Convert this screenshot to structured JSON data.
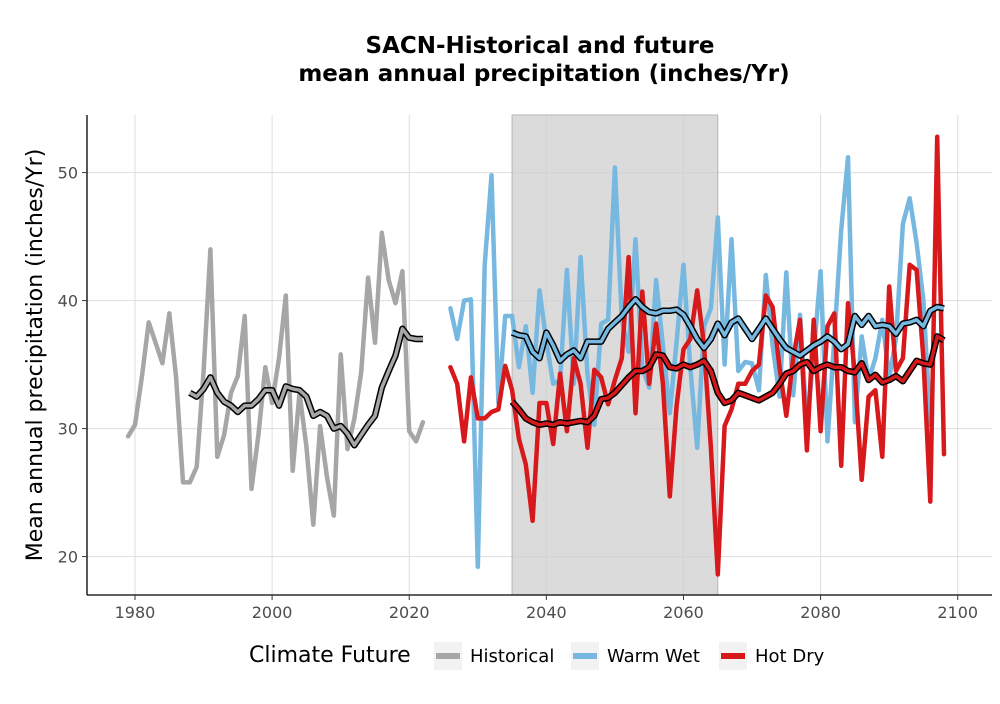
{
  "chart_data": {
    "type": "line",
    "title_line1": "SACN-Historical and future",
    "title_line2": "mean annual precipitation (inches/Yr)",
    "xlabel": "",
    "ylabel": "Mean annual precipitation (inches/Yr)",
    "xlim": [
      1973,
      2105
    ],
    "ylim": [
      17,
      54.5
    ],
    "x_ticks": [
      1980,
      2000,
      2020,
      2040,
      2060,
      2080,
      2100
    ],
    "y_ticks": [
      20,
      30,
      40,
      50
    ],
    "grid": true,
    "shaded_period": [
      2035,
      2065
    ],
    "legend": {
      "title": "Climate Future",
      "position": "bottom"
    },
    "series": [
      {
        "name": "Historical",
        "color": "#a6a6a6",
        "start_year": 1979,
        "values": [
          29.4,
          30.3,
          34.0,
          38.3,
          36.7,
          35.1,
          39.0,
          34.0,
          25.8,
          25.8,
          27.0,
          34.5,
          44.0,
          27.8,
          29.5,
          32.8,
          34.1,
          38.8,
          25.3,
          29.5,
          34.8,
          32.0,
          35.5,
          40.4,
          26.7,
          32.8,
          28.6,
          22.5,
          30.2,
          26.2,
          23.2,
          35.8,
          28.4,
          30.8,
          34.4,
          41.8,
          36.7,
          45.3,
          41.6,
          39.8,
          42.3,
          29.8,
          29.0,
          30.5
        ]
      },
      {
        "name": "Warm Wet",
        "color": "#77b8e1",
        "start_year": 2026,
        "values": [
          39.4,
          37.0,
          40.0,
          40.1,
          19.2,
          42.8,
          49.8,
          32.0,
          38.8,
          38.8,
          34.8,
          38.0,
          32.8,
          40.8,
          36.8,
          33.5,
          33.8,
          42.4,
          33.5,
          43.4,
          34.2,
          30.3,
          38.2,
          38.5,
          50.4,
          38.5,
          36.0,
          44.8,
          34.8,
          33.2,
          41.6,
          36.5,
          31.2,
          36.8,
          42.8,
          34.8,
          28.5,
          38.0,
          39.4,
          46.5,
          35.0,
          44.8,
          34.5,
          35.2,
          35.1,
          33.0,
          42.0,
          36.5,
          32.5,
          42.2,
          32.6,
          38.9,
          30.2,
          35.8,
          42.3,
          29.0,
          37.0,
          45.5,
          51.2,
          30.5,
          37.2,
          33.8,
          35.5,
          38.5,
          34.0,
          37.0,
          46.0,
          48.0,
          44.5,
          40.0,
          30.3
        ]
      },
      {
        "name": "Hot Dry",
        "color": "#d7191c",
        "start_year": 2026,
        "values": [
          34.8,
          33.5,
          29.0,
          34.0,
          30.8,
          30.8,
          31.3,
          31.5,
          34.9,
          33.0,
          29.2,
          27.2,
          22.8,
          32.0,
          32.0,
          28.8,
          34.3,
          29.8,
          35.5,
          33.5,
          28.5,
          34.6,
          34.0,
          31.9,
          33.8,
          35.5,
          43.4,
          31.2,
          40.7,
          33.5,
          38.2,
          33.5,
          24.7,
          31.8,
          36.2,
          37.0,
          40.8,
          36.5,
          28.5,
          18.6,
          30.2,
          31.5,
          33.5,
          33.5,
          34.5,
          35.0,
          40.4,
          39.5,
          34.8,
          31.0,
          35.5,
          38.5,
          28.3,
          38.5,
          29.8,
          38.0,
          39.0,
          27.1,
          39.8,
          34.2,
          26.0,
          32.5,
          33.0,
          27.8,
          41.1,
          34.5,
          35.5,
          42.8,
          42.4,
          35.5,
          24.3,
          52.8,
          28.0
        ]
      }
    ],
    "smoothed_series": [
      {
        "name": "Historical",
        "start_year": 1988,
        "values": [
          32.8,
          32.5,
          33.1,
          34.0,
          32.8,
          32.1,
          31.8,
          31.3,
          31.8,
          31.8,
          32.3,
          33.0,
          33.0,
          31.8,
          33.3,
          33.1,
          33.0,
          32.5,
          31.0,
          31.3,
          31.0,
          30.0,
          30.2,
          29.6,
          28.7,
          29.5,
          30.3,
          31.0,
          33.2,
          34.5,
          35.7,
          37.8,
          37.1,
          37.0,
          37.0
        ]
      },
      {
        "name": "Warm Wet",
        "start_year": 2035,
        "values": [
          37.5,
          37.3,
          37.2,
          36.0,
          35.5,
          37.5,
          36.5,
          35.3,
          35.8,
          36.1,
          35.5,
          36.8,
          36.8,
          36.8,
          37.8,
          38.3,
          38.8,
          39.5,
          40.1,
          39.5,
          39.1,
          39.0,
          39.2,
          39.2,
          39.3,
          38.9,
          38.0,
          37.0,
          36.3,
          37.0,
          38.2,
          37.3,
          38.3,
          38.6,
          37.8,
          37.0,
          37.8,
          38.6,
          37.8,
          37.0,
          36.3,
          36.0,
          35.7,
          36.1,
          36.5,
          36.8,
          37.2,
          36.8,
          36.2,
          36.6,
          38.8,
          38.1,
          38.8,
          38.0,
          38.1,
          38.0,
          37.4,
          38.2,
          38.3,
          38.5,
          38.0,
          39.2,
          39.5,
          39.4
        ]
      },
      {
        "name": "Hot Dry",
        "start_year": 2035,
        "values": [
          32.1,
          31.5,
          30.8,
          30.5,
          30.3,
          30.4,
          30.3,
          30.5,
          30.4,
          30.5,
          30.6,
          30.5,
          31.0,
          32.3,
          32.4,
          32.8,
          33.4,
          34.0,
          34.5,
          34.5,
          34.8,
          35.8,
          35.7,
          34.8,
          34.7,
          35.0,
          34.8,
          35.0,
          35.3,
          34.5,
          32.8,
          32.0,
          32.2,
          32.8,
          32.6,
          32.4,
          32.2,
          32.5,
          32.8,
          33.5,
          34.3,
          34.5,
          35.0,
          35.2,
          34.5,
          34.8,
          35.0,
          34.8,
          34.8,
          34.5,
          34.4,
          35.1,
          33.8,
          34.2,
          33.6,
          33.8,
          34.1,
          33.7,
          34.5,
          35.3,
          35.1,
          35.0,
          37.2,
          36.9
        ]
      }
    ]
  }
}
